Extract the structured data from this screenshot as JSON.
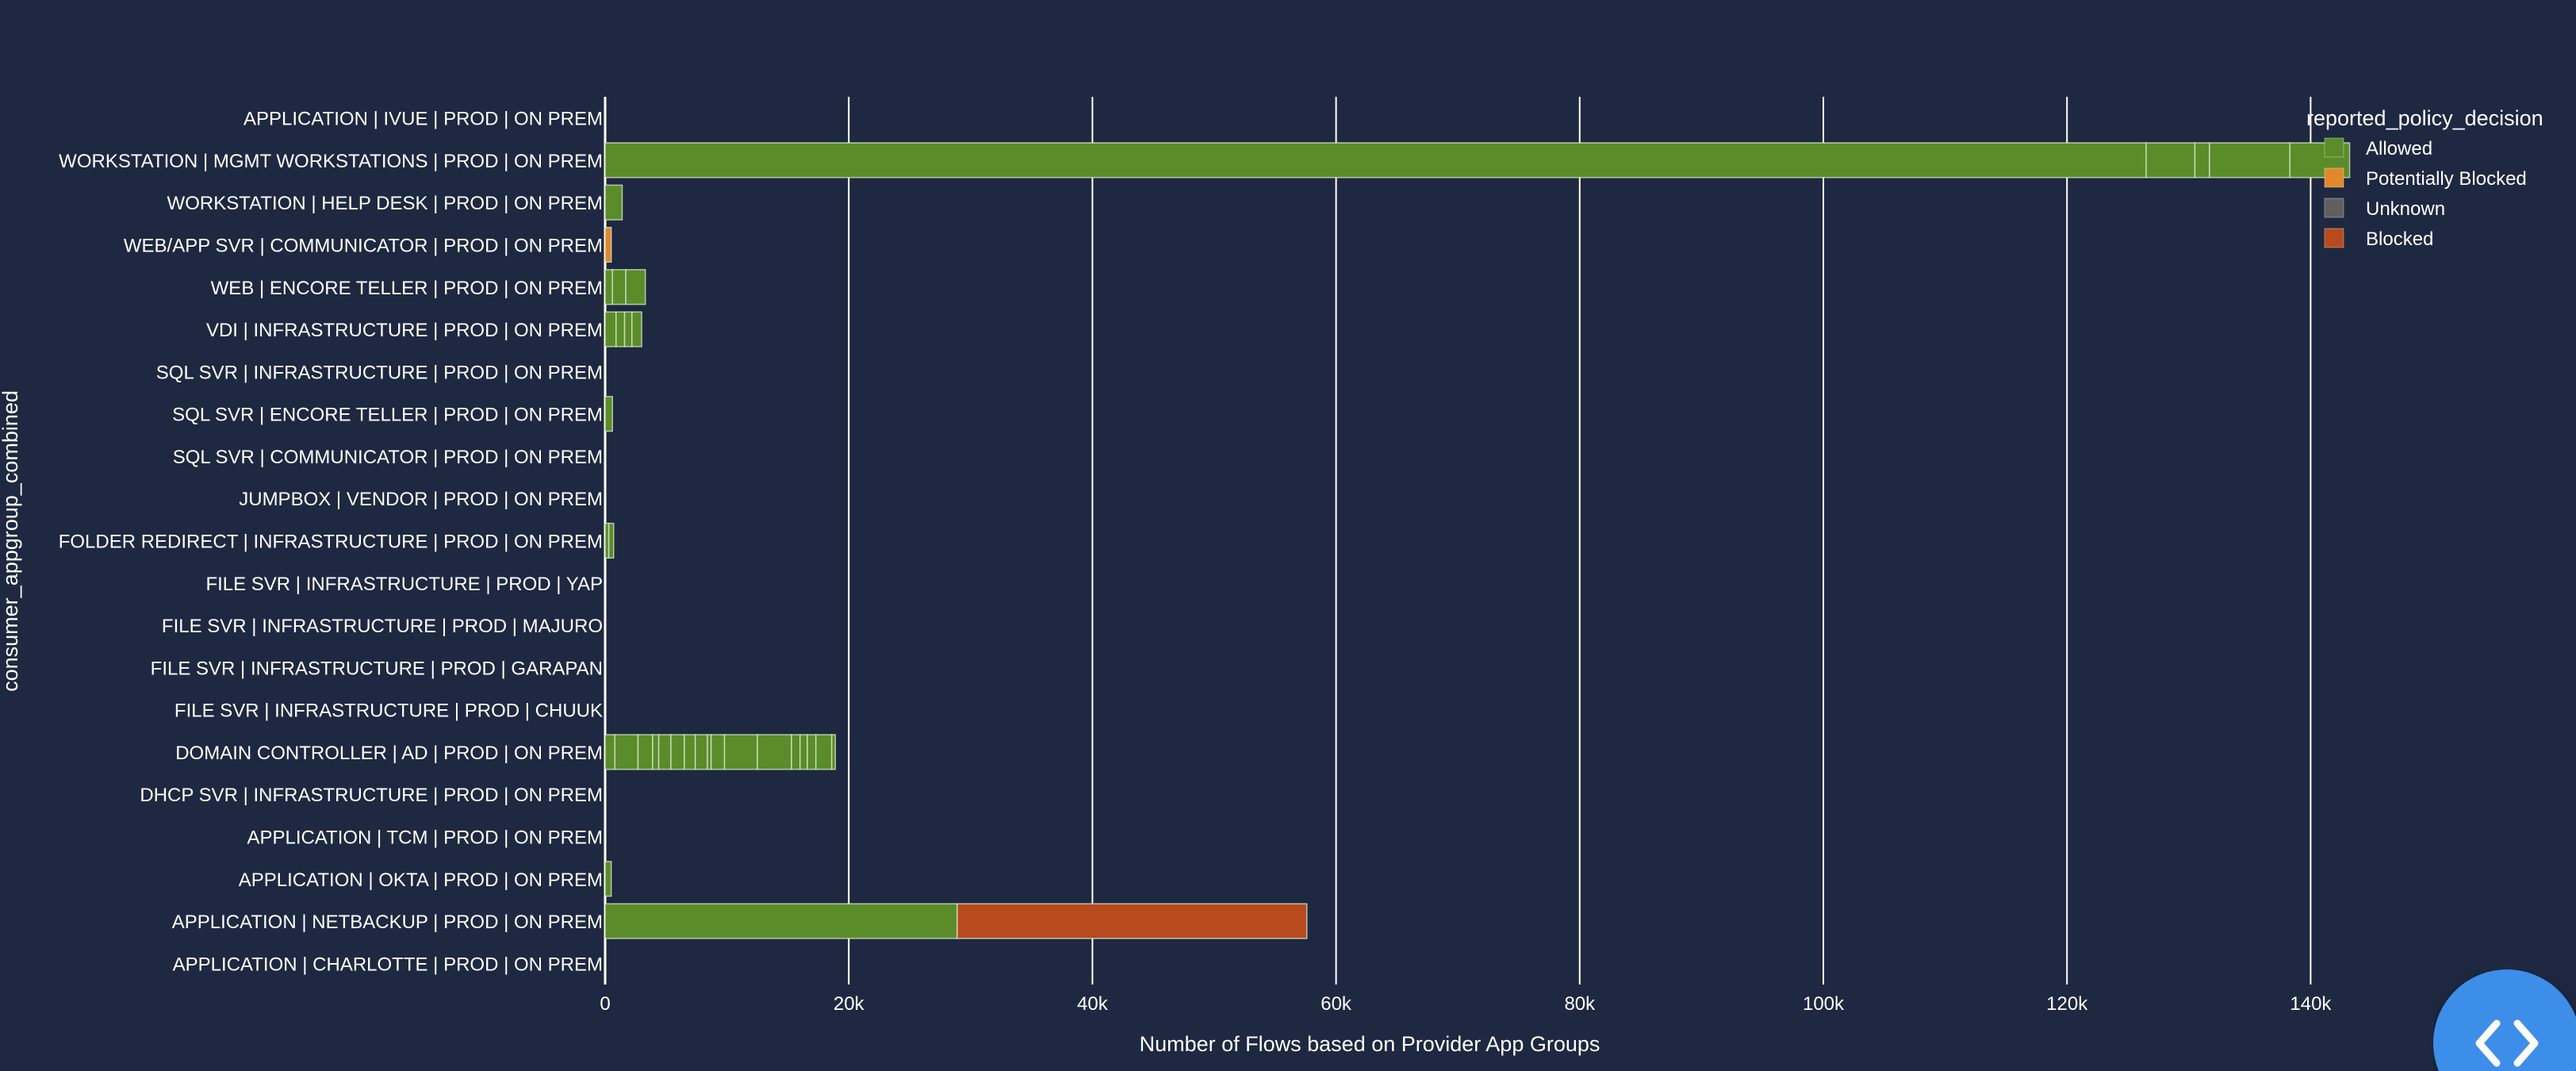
{
  "chart_data": {
    "type": "bar",
    "orientation": "horizontal",
    "stacked": true,
    "title": "",
    "xlabel": "Number of Flows based on Provider App Groups",
    "ylabel": "consumer_appgroup_combined",
    "xlim": [
      0,
      150000
    ],
    "xticks": [
      0,
      20000,
      40000,
      60000,
      80000,
      100000,
      120000,
      140000
    ],
    "xtick_labels": [
      "0",
      "20k",
      "40k",
      "60k",
      "80k",
      "100k",
      "120k",
      "140k"
    ],
    "grid": "vertical",
    "legend_position": "top-right",
    "legend_title": "reported_policy_decision",
    "legend": [
      {
        "name": "Allowed",
        "color": "#5b8c2a"
      },
      {
        "name": "Potentially Blocked",
        "color": "#e0892b"
      },
      {
        "name": "Unknown",
        "color": "#5f5f5f"
      },
      {
        "name": "Blocked",
        "color": "#b84a1e"
      }
    ],
    "categories": [
      "APPLICATION | IVUE | PROD | ON PREM",
      "WORKSTATION | MGMT WORKSTATIONS | PROD | ON PREM",
      "WORKSTATION | HELP DESK | PROD | ON PREM",
      "WEB/APP SVR | COMMUNICATOR | PROD | ON PREM",
      "WEB | ENCORE TELLER | PROD | ON PREM",
      "VDI | INFRASTRUCTURE | PROD | ON PREM",
      "SQL SVR | INFRASTRUCTURE | PROD | ON PREM",
      "SQL SVR | ENCORE TELLER | PROD | ON PREM",
      "SQL SVR | COMMUNICATOR | PROD | ON PREM",
      "JUMPBOX | VENDOR | PROD | ON PREM",
      "FOLDER REDIRECT | INFRASTRUCTURE | PROD | ON PREM",
      "FILE SVR | INFRASTRUCTURE | PROD | YAP",
      "FILE SVR | INFRASTRUCTURE | PROD | MAJURO",
      "FILE SVR | INFRASTRUCTURE | PROD | GARAPAN",
      "FILE SVR | INFRASTRUCTURE | PROD | CHUUK",
      "DOMAIN CONTROLLER | AD | PROD | ON PREM",
      "DHCP SVR | INFRASTRUCTURE | PROD | ON PREM",
      "APPLICATION | TCM | PROD | ON PREM",
      "APPLICATION | OKTA | PROD | ON PREM",
      "APPLICATION | NETBACKUP | PROD | ON PREM",
      "APPLICATION | CHARLOTTE | PROD | ON PREM"
    ],
    "segments": [
      [],
      [
        {
          "d": "Allowed",
          "v": 126500
        },
        {
          "d": "Allowed",
          "v": 4000
        },
        {
          "d": "Allowed",
          "v": 1200
        },
        {
          "d": "Allowed",
          "v": 6600
        },
        {
          "d": "Allowed",
          "v": 4900
        }
      ],
      [
        {
          "d": "Allowed",
          "v": 1400
        }
      ],
      [
        {
          "d": "Potentially Blocked",
          "v": 500
        }
      ],
      [
        {
          "d": "Allowed",
          "v": 600
        },
        {
          "d": "Allowed",
          "v": 1100
        },
        {
          "d": "Allowed",
          "v": 1600
        }
      ],
      [
        {
          "d": "Allowed",
          "v": 900
        },
        {
          "d": "Allowed",
          "v": 700
        },
        {
          "d": "Allowed",
          "v": 600
        },
        {
          "d": "Allowed",
          "v": 800
        }
      ],
      [],
      [
        {
          "d": "Allowed",
          "v": 600
        }
      ],
      [],
      [],
      [
        {
          "d": "Allowed",
          "v": 300
        },
        {
          "d": "Allowed",
          "v": 400
        }
      ],
      [],
      [],
      [],
      [],
      [
        {
          "d": "Allowed",
          "v": 800
        },
        {
          "d": "Allowed",
          "v": 1900
        },
        {
          "d": "Allowed",
          "v": 1200
        },
        {
          "d": "Allowed",
          "v": 500
        },
        {
          "d": "Allowed",
          "v": 1000
        },
        {
          "d": "Allowed",
          "v": 1100
        },
        {
          "d": "Allowed",
          "v": 900
        },
        {
          "d": "Allowed",
          "v": 1000
        },
        {
          "d": "Allowed",
          "v": 300
        },
        {
          "d": "Allowed",
          "v": 1100
        },
        {
          "d": "Allowed",
          "v": 2700
        },
        {
          "d": "Allowed",
          "v": 2800
        },
        {
          "d": "Allowed",
          "v": 700
        },
        {
          "d": "Allowed",
          "v": 600
        },
        {
          "d": "Allowed",
          "v": 700
        },
        {
          "d": "Allowed",
          "v": 1300
        },
        {
          "d": "Allowed",
          "v": 300
        }
      ],
      [],
      [],
      [
        {
          "d": "Allowed",
          "v": 500
        }
      ],
      [
        {
          "d": "Allowed",
          "v": 28900
        },
        {
          "d": "Blocked",
          "v": 28700
        }
      ],
      []
    ]
  },
  "code_button": {
    "icon": "code-brackets-icon"
  }
}
